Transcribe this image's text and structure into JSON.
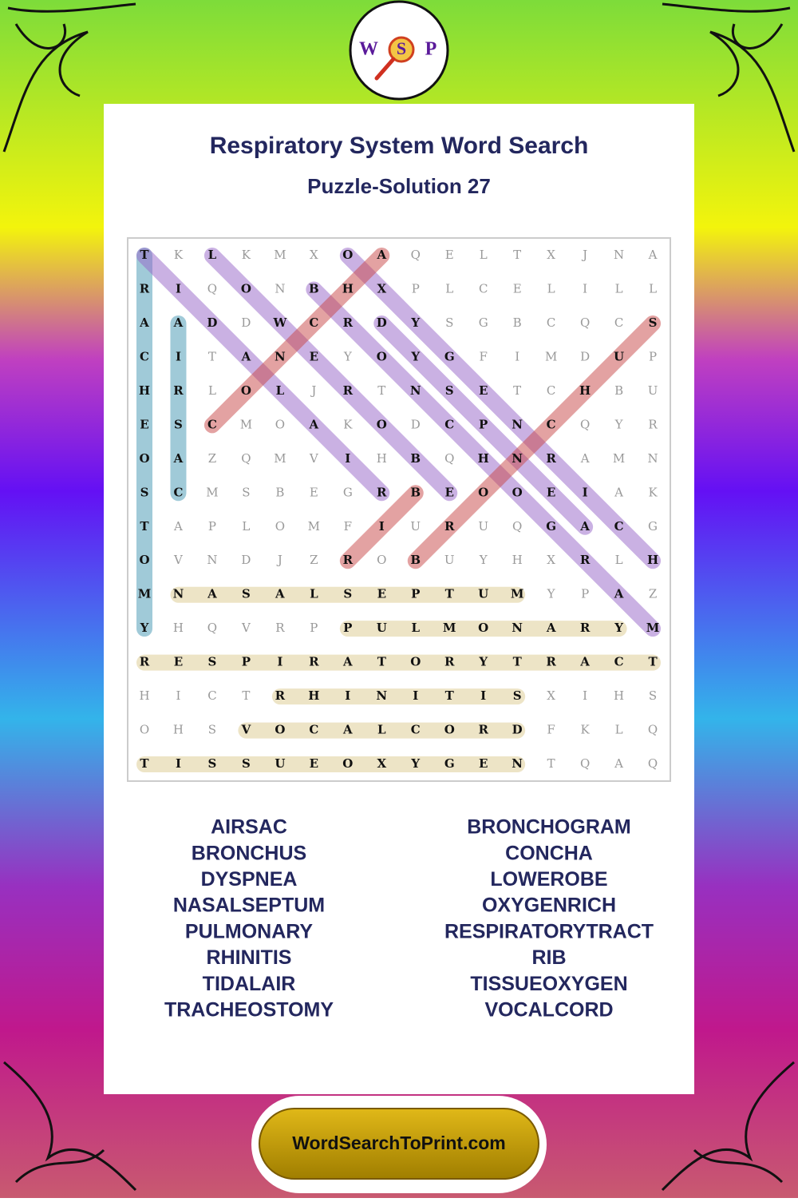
{
  "header": {
    "title": "Respiratory System Word Search",
    "subtitle": "Puzzle-Solution 27"
  },
  "logo": {
    "letters": [
      "W",
      "S",
      "P"
    ]
  },
  "grid": {
    "rows": [
      [
        "T",
        "K",
        "L",
        "K",
        "M",
        "X",
        "O",
        "A",
        "Q",
        "E",
        "L",
        "T",
        "X",
        "J",
        "N",
        "A"
      ],
      [
        "R",
        "I",
        "Q",
        "O",
        "N",
        "B",
        "H",
        "X",
        "P",
        "L",
        "C",
        "E",
        "L",
        "I",
        "L",
        "L"
      ],
      [
        "A",
        "A",
        "D",
        "D",
        "W",
        "C",
        "R",
        "D",
        "Y",
        "S",
        "G",
        "B",
        "C",
        "Q",
        "C",
        "S"
      ],
      [
        "C",
        "I",
        "T",
        "A",
        "N",
        "E",
        "Y",
        "O",
        "Y",
        "G",
        "F",
        "I",
        "M",
        "D",
        "U",
        "P"
      ],
      [
        "H",
        "R",
        "L",
        "O",
        "L",
        "J",
        "R",
        "T",
        "N",
        "S",
        "E",
        "T",
        "C",
        "H",
        "B",
        "U"
      ],
      [
        "E",
        "S",
        "C",
        "M",
        "O",
        "A",
        "K",
        "O",
        "D",
        "C",
        "P",
        "N",
        "C",
        "Q",
        "Y",
        "R"
      ],
      [
        "O",
        "A",
        "Z",
        "Q",
        "M",
        "V",
        "I",
        "H",
        "B",
        "Q",
        "H",
        "N",
        "R",
        "A",
        "M",
        "N"
      ],
      [
        "S",
        "C",
        "M",
        "S",
        "B",
        "E",
        "G",
        "R",
        "B",
        "E",
        "O",
        "O",
        "E",
        "I",
        "A",
        "K"
      ],
      [
        "T",
        "A",
        "P",
        "L",
        "O",
        "M",
        "F",
        "I",
        "U",
        "R",
        "U",
        "Q",
        "G",
        "A",
        "C",
        "G"
      ],
      [
        "O",
        "V",
        "N",
        "D",
        "J",
        "Z",
        "R",
        "O",
        "B",
        "U",
        "Y",
        "H",
        "X",
        "R",
        "L",
        "H"
      ],
      [
        "M",
        "N",
        "A",
        "S",
        "A",
        "L",
        "S",
        "E",
        "P",
        "T",
        "U",
        "M",
        "Y",
        "P",
        "A",
        "Z"
      ],
      [
        "Y",
        "H",
        "Q",
        "V",
        "R",
        "P",
        "P",
        "U",
        "L",
        "M",
        "O",
        "N",
        "A",
        "R",
        "Y",
        "M"
      ],
      [
        "R",
        "E",
        "S",
        "P",
        "I",
        "R",
        "A",
        "T",
        "O",
        "R",
        "Y",
        "T",
        "R",
        "A",
        "C",
        "T"
      ],
      [
        "H",
        "I",
        "C",
        "T",
        "R",
        "H",
        "I",
        "N",
        "I",
        "T",
        "I",
        "S",
        "X",
        "I",
        "H",
        "S"
      ],
      [
        "O",
        "H",
        "S",
        "V",
        "O",
        "C",
        "A",
        "L",
        "C",
        "O",
        "R",
        "D",
        "F",
        "K",
        "L",
        "Q"
      ],
      [
        "T",
        "I",
        "S",
        "S",
        "U",
        "E",
        "O",
        "X",
        "Y",
        "G",
        "E",
        "N",
        "T",
        "Q",
        "A",
        "Q"
      ]
    ]
  },
  "word_list": {
    "left": [
      "AIRSAC",
      "BRONCHUS",
      "DYSPNEA",
      "NASALSEPTUM",
      "PULMONARY",
      "RHINITIS",
      "TIDALAIR",
      "TRACHEOSTOMY"
    ],
    "right": [
      "BRONCHOGRAM",
      "CONCHA",
      "LOWEROBE",
      "OXYGENRICH",
      "RESPIRATORYTRACT",
      "RIB",
      "TISSUEOXYGEN",
      "VOCALCORD"
    ]
  },
  "footer": {
    "url": "WordSearchToPrint.com"
  }
}
